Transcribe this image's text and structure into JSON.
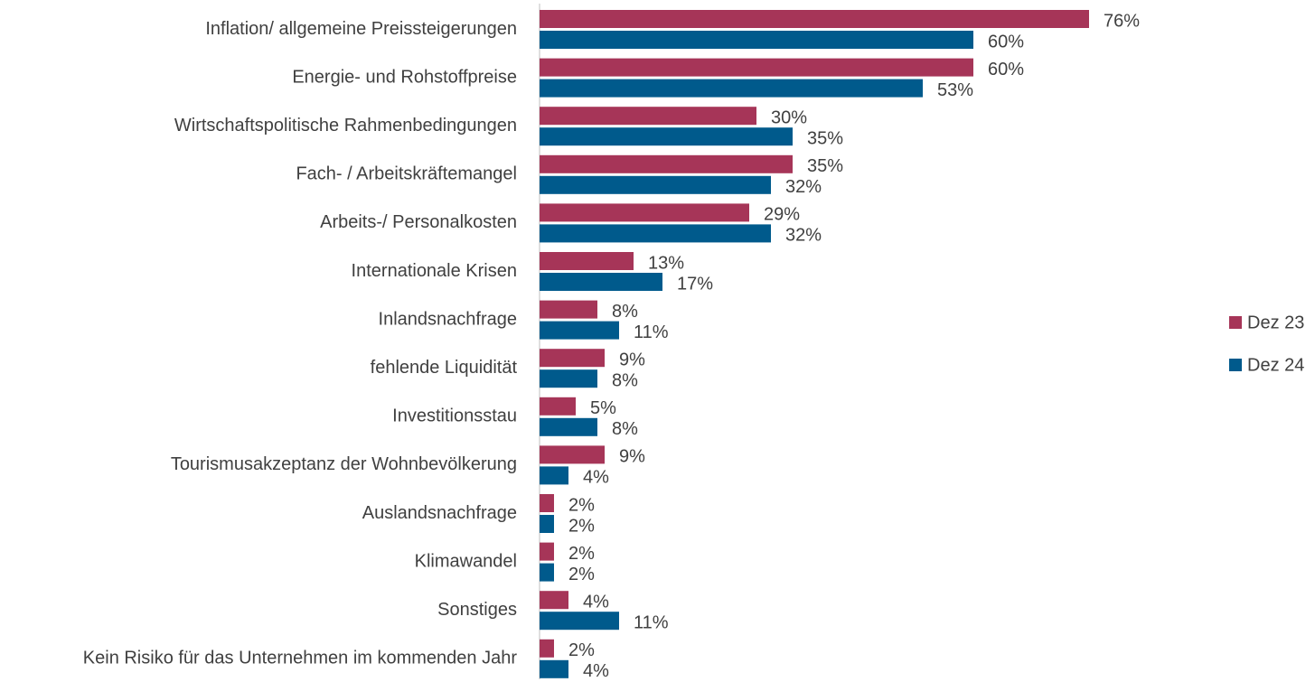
{
  "chart_data": {
    "type": "bar",
    "orientation": "horizontal",
    "categories": [
      "Inflation/ allgemeine Preissteigerungen",
      "Energie- und Rohstoffpreise",
      "Wirtschaftspolitische Rahmenbedingungen",
      "Fach- / Arbeitskräftemangel",
      "Arbeits-/ Personalkosten",
      "Internationale Krisen",
      "Inlandsnachfrage",
      "fehlende Liquidität",
      "Investitionsstau",
      "Tourismusakzeptanz der Wohnbevölkerung",
      "Auslandsnachfrage",
      "Klimawandel",
      "Sonstiges",
      "Kein Risiko für das Unternehmen im kommenden Jahr"
    ],
    "series": [
      {
        "name": "Dez 23",
        "color": "#a63558",
        "values": [
          76,
          60,
          30,
          35,
          29,
          13,
          8,
          9,
          5,
          9,
          2,
          2,
          4,
          2
        ],
        "value_labels": [
          "76%",
          "60%",
          "30%",
          "35%",
          "29%",
          "13%",
          "8%",
          "9%",
          "5%",
          "9%",
          "2%",
          "2%",
          "4%",
          "2%"
        ]
      },
      {
        "name": "Dez 24",
        "color": "#005a8c",
        "values": [
          60,
          53,
          35,
          32,
          32,
          17,
          11,
          8,
          8,
          4,
          2,
          2,
          11,
          4
        ],
        "value_labels": [
          "60%",
          "53%",
          "35%",
          "32%",
          "32%",
          "17%",
          "11%",
          "8%",
          "8%",
          "4%",
          "2%",
          "2%",
          "11%",
          "4%"
        ]
      }
    ],
    "legend": "right"
  }
}
